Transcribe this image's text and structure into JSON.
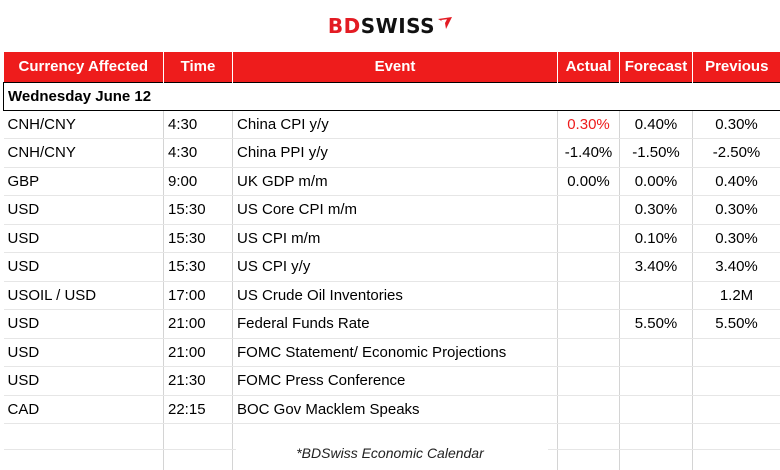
{
  "brand": {
    "part1": "BD",
    "part2": "SWISS",
    "colors": {
      "accent": "#ee1c1c",
      "dark": "#111111"
    },
    "mark_icon": "swiss-arrow-icon"
  },
  "table": {
    "headers": [
      "Currency Affected",
      "Time",
      "Event",
      "Actual",
      "Forecast",
      "Previous"
    ],
    "date_label": "Wednesday June 12",
    "rows": [
      {
        "currency": "CNH/CNY",
        "time": "4:30",
        "event": "China CPI y/y",
        "actual": "0.30%",
        "forecast": "0.40%",
        "previous": "0.30%"
      },
      {
        "currency": "CNH/CNY",
        "time": "4:30",
        "event": "China PPI y/y",
        "actual": "-1.40%",
        "forecast": "-1.50%",
        "previous": "-2.50%"
      },
      {
        "currency": "GBP",
        "time": "9:00",
        "event": "UK GDP m/m",
        "actual": "0.00%",
        "forecast": "0.00%",
        "previous": "0.40%"
      },
      {
        "currency": "USD",
        "time": "15:30",
        "event": "US Core CPI m/m",
        "actual": "",
        "forecast": "0.30%",
        "previous": "0.30%"
      },
      {
        "currency": "USD",
        "time": "15:30",
        "event": "US CPI m/m",
        "actual": "",
        "forecast": "0.10%",
        "previous": "0.30%"
      },
      {
        "currency": "USD",
        "time": "15:30",
        "event": "US CPI y/y",
        "actual": "",
        "forecast": "3.40%",
        "previous": "3.40%"
      },
      {
        "currency": "USOIL / USD",
        "time": "17:00",
        "event": "US Crude Oil Inventories",
        "actual": "",
        "forecast": "",
        "previous": "1.2M"
      },
      {
        "currency": "USD",
        "time": "21:00",
        "event": "Federal Funds Rate",
        "actual": "",
        "forecast": "5.50%",
        "previous": "5.50%"
      },
      {
        "currency": "USD",
        "time": "21:00",
        "event": "FOMC Statement/ Economic Projections",
        "actual": "",
        "forecast": "",
        "previous": ""
      },
      {
        "currency": "USD",
        "time": "21:30",
        "event": "FOMC Press Conference",
        "actual": "",
        "forecast": "",
        "previous": ""
      },
      {
        "currency": "CAD",
        "time": "22:15",
        "event": "BOC Gov Macklem Speaks",
        "actual": "",
        "forecast": "",
        "previous": ""
      }
    ]
  },
  "footer": {
    "note": "*BDSwiss Economic Calendar"
  }
}
